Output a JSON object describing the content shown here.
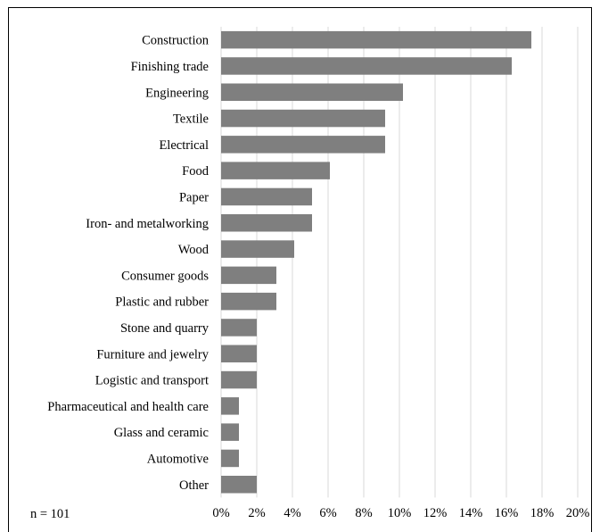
{
  "chart_data": {
    "type": "bar",
    "orientation": "horizontal",
    "categories": [
      "Construction",
      "Finishing trade",
      "Engineering",
      "Textile",
      "Electrical",
      "Food",
      "Paper",
      "Iron- and metalworking",
      "Wood",
      "Consumer goods",
      "Plastic and rubber",
      "Stone and quarry",
      "Furniture and jewelry",
      "Logistic and transport",
      "Pharmaceutical and health care",
      "Glass and ceramic",
      "Automotive",
      "Other"
    ],
    "values": [
      17.4,
      16.3,
      10.2,
      9.2,
      9.2,
      6.1,
      5.1,
      5.1,
      4.1,
      3.1,
      3.1,
      2.0,
      2.0,
      2.0,
      1.0,
      1.0,
      1.0,
      2.0
    ],
    "xlim": [
      0,
      20
    ],
    "x_ticks": [
      "0%",
      "2%",
      "4%",
      "6%",
      "8%",
      "10%",
      "12%",
      "14%",
      "16%",
      "18%",
      "20%"
    ],
    "grid": "vertical",
    "bar_color": "#7f7f7f",
    "grid_color": "#d9d9d9",
    "note": "n = 101"
  }
}
